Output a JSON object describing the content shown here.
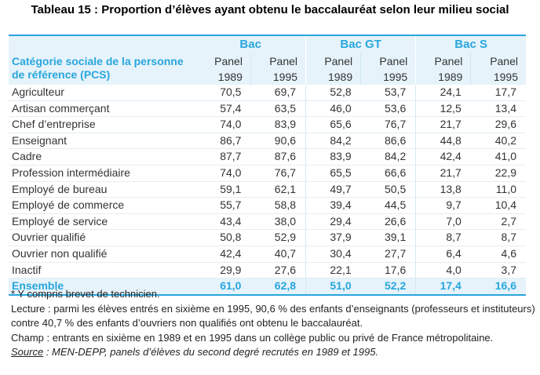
{
  "title": "Tableau 15 : Proportion d’élèves ayant obtenu le baccalauréat selon leur milieu social",
  "table": {
    "row_header": "Catégorie sociale de la personne de référence (PCS)",
    "row_header_lines": [
      "Catégorie sociale de la personne",
      "de référence (PCS)"
    ],
    "groups": [
      "Bac",
      "Bac GT",
      "Bac S"
    ],
    "subheaders": [
      {
        "line1": "Panel",
        "line2": "1989"
      },
      {
        "line1": "Panel",
        "line2": "1995"
      },
      {
        "line1": "Panel",
        "line2": "1989"
      },
      {
        "line1": "Panel",
        "line2": "1995"
      },
      {
        "line1": "Panel",
        "line2": "1989"
      },
      {
        "line1": "Panel",
        "line2": "1995"
      }
    ],
    "rows": [
      {
        "label": "Agriculteur",
        "values": [
          "70,5",
          "69,7",
          "52,8",
          "53,7",
          "24,1",
          "17,7"
        ]
      },
      {
        "label": "Artisan commerçant",
        "values": [
          "57,4",
          "63,5",
          "46,0",
          "53,6",
          "12,5",
          "13,4"
        ]
      },
      {
        "label": "Chef d’entreprise",
        "values": [
          "74,0",
          "83,9",
          "65,6",
          "76,7",
          "21,7",
          "29,6"
        ]
      },
      {
        "label": "Enseignant",
        "values": [
          "86,7",
          "90,6",
          "84,2",
          "86,6",
          "44,8",
          "40,2"
        ]
      },
      {
        "label": "Cadre",
        "values": [
          "87,7",
          "87,6",
          "83,9",
          "84,2",
          "42,4",
          "41,0"
        ]
      },
      {
        "label": "Profession intermédiaire",
        "values": [
          "74,0",
          "76,7",
          "65,5",
          "66,6",
          "21,7",
          "22,9"
        ]
      },
      {
        "label": "Employé de bureau",
        "values": [
          "59,1",
          "62,1",
          "49,7",
          "50,5",
          "13,8",
          "11,0"
        ]
      },
      {
        "label": "Employé de commerce",
        "values": [
          "55,7",
          "58,8",
          "39,4",
          "44,5",
          "9,7",
          "10,4"
        ]
      },
      {
        "label": "Employé de service",
        "values": [
          "43,4",
          "38,0",
          "29,4",
          "26,6",
          "7,0",
          "2,7"
        ]
      },
      {
        "label": "Ouvrier qualifié",
        "values": [
          "50,8",
          "52,9",
          "37,9",
          "39,1",
          "8,7",
          "8,7"
        ]
      },
      {
        "label": "Ouvrier non qualifié",
        "values": [
          "42,4",
          "40,7",
          "30,4",
          "27,7",
          "6,4",
          "4,6"
        ]
      },
      {
        "label": "Inactif",
        "values": [
          "29,9",
          "27,6",
          "22,1",
          "17,6",
          "4,0",
          "3,7"
        ]
      }
    ],
    "total": {
      "label": "Ensemble",
      "values": [
        "61,0",
        "62,8",
        "51,0",
        "52,2",
        "17,4",
        "16,6"
      ]
    }
  },
  "notes": {
    "footnote": "* Y compris brevet de technicien.",
    "lecture_line1": "Lecture : parmi les élèves entrés en sixième en 1995, 90,6 % des enfants d’enseignants (professeurs et instituteurs)",
    "lecture_line2": "contre 40,7 % des enfants d’ouvriers non qualifiés ont obtenu le baccalauréat.",
    "champ": "Champ : entrants en sixième en 1989 et en 1995 dans un collège public ou privé de France métropolitaine.",
    "source_label": "Source",
    "source_text": " : MEN-DEPP, panels d’élèves du second degré recrutés en 1989 et 1995."
  }
}
